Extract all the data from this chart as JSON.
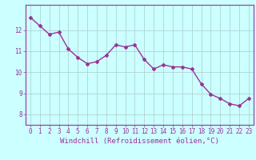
{
  "x": [
    0,
    1,
    2,
    3,
    4,
    5,
    6,
    7,
    8,
    9,
    10,
    11,
    12,
    13,
    14,
    15,
    16,
    17,
    18,
    19,
    20,
    21,
    22,
    23
  ],
  "y": [
    12.6,
    12.2,
    11.8,
    11.9,
    11.1,
    10.7,
    10.4,
    10.5,
    10.8,
    11.3,
    11.2,
    11.3,
    10.6,
    10.15,
    10.35,
    10.25,
    10.25,
    10.15,
    9.45,
    8.95,
    8.75,
    8.5,
    8.4,
    8.75
  ],
  "line_color": "#993399",
  "marker": "D",
  "marker_size": 2.0,
  "background_color": "#ccffff",
  "grid_color": "#aacccc",
  "xlabel": "Windchill (Refroidissement éolien,°C)",
  "xlabel_fontsize": 6.5,
  "tick_label_color": "#993399",
  "axis_label_color": "#993399",
  "ylim": [
    7.5,
    13.2
  ],
  "xlim": [
    -0.5,
    23.5
  ],
  "yticks": [
    8,
    9,
    10,
    11,
    12
  ],
  "xticks": [
    0,
    1,
    2,
    3,
    4,
    5,
    6,
    7,
    8,
    9,
    10,
    11,
    12,
    13,
    14,
    15,
    16,
    17,
    18,
    19,
    20,
    21,
    22,
    23
  ],
  "tick_fontsize": 5.5,
  "linewidth": 1.0
}
